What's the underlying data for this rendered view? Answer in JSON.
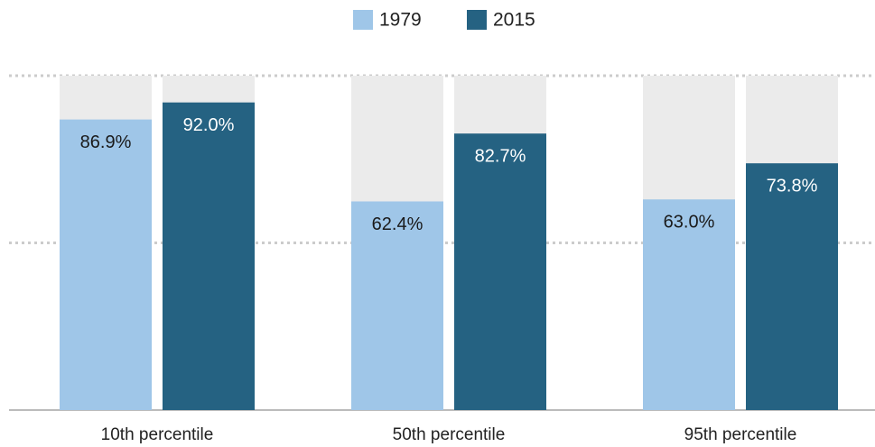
{
  "chart_data": {
    "type": "bar",
    "categories": [
      "10th percentile",
      "50th percentile",
      "95th percentile"
    ],
    "series": [
      {
        "name": "1979",
        "color": "#9fc6e8",
        "label_color": "#1a1a1a",
        "values": [
          86.9,
          62.4,
          63.0
        ],
        "value_labels": [
          "86.9%",
          "62.4%",
          "63.0%"
        ]
      },
      {
        "name": "2015",
        "color": "#256282",
        "label_color": "#ffffff",
        "values": [
          92.0,
          82.7,
          73.8
        ],
        "value_labels": [
          "92.0%",
          "82.7%",
          "73.8%"
        ]
      }
    ],
    "ylim": [
      0,
      100
    ],
    "yticks": [
      0,
      50,
      100
    ],
    "grid": true,
    "background_bars": true,
    "legend": "top"
  }
}
